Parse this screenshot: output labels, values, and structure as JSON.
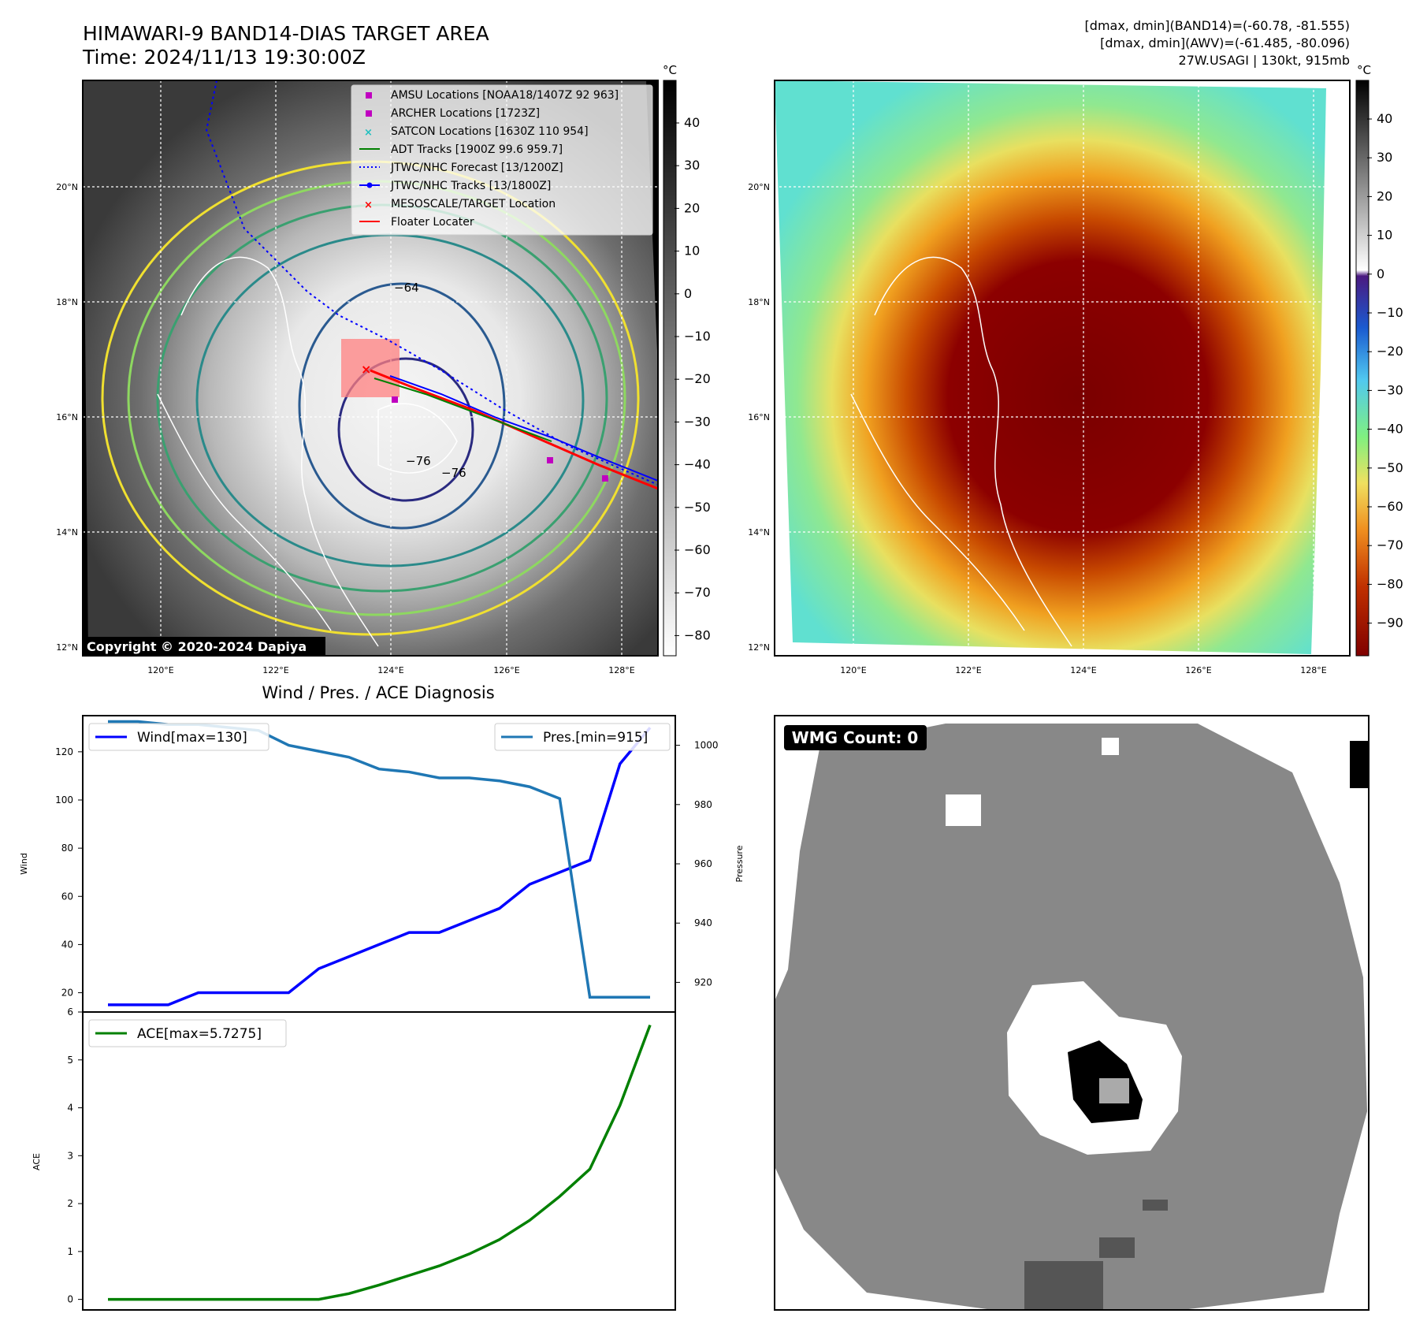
{
  "header": {
    "title_line1": "HIMAWARI-9 BAND14-DIAS TARGET AREA",
    "title_line2": "Time: 2024/11/13 19:30:00Z",
    "right_line1": "[dmax, dmin](BAND14)=(-60.78, -81.555)",
    "right_line2": "[dmax, dmin](AWV)=(-61.485, -80.096)",
    "right_line3": "27W.USAGI | 130kt, 915mb"
  },
  "ir_panel": {
    "lat_labels": [
      "20°N",
      "18°N",
      "16°N",
      "14°N",
      "12°N"
    ],
    "lon_labels": [
      "120°E",
      "122°E",
      "124°E",
      "126°E",
      "128°E"
    ],
    "colorbar_unit": "°C",
    "colorbar_ticks": [
      "40",
      "30",
      "20",
      "10",
      "0",
      "−10",
      "−20",
      "−30",
      "−40",
      "−50",
      "−60",
      "−70",
      "−80"
    ],
    "contour_labels": [
      "−64",
      "−76",
      "−76"
    ],
    "copyright": "Copyright © 2020-2024 Dapiya",
    "legend": [
      {
        "label": "AMSU Locations [NOAA18/1407Z 92 963]",
        "color": "#c000c0"
      },
      {
        "label": "ARCHER Locations [1723Z]",
        "color": "#c000c0"
      },
      {
        "label": "SATCON Locations [1630Z 110 954]",
        "color": "#20c0c0"
      },
      {
        "label": "ADT Tracks [1900Z 99.6 959.7]",
        "color": "#008000"
      },
      {
        "label": "JTWC/NHC Forecast [13/1200Z]",
        "color": "#0000ff"
      },
      {
        "label": "JTWC/NHC Tracks [13/1800Z]",
        "color": "#0000ff"
      },
      {
        "label": "MESOSCALE/TARGET Location",
        "color": "#ff0000"
      },
      {
        "label": "Floater Locater",
        "color": "#ff0000"
      }
    ]
  },
  "awv_panel": {
    "lat_labels": [
      "20°N",
      "18°N",
      "16°N",
      "14°N",
      "12°N"
    ],
    "lon_labels": [
      "120°E",
      "122°E",
      "124°E",
      "126°E",
      "128°E"
    ],
    "colorbar_unit": "°C",
    "colorbar_ticks": [
      "40",
      "30",
      "20",
      "10",
      "0",
      "−10",
      "−20",
      "−30",
      "−40",
      "−50",
      "−60",
      "−70",
      "−80",
      "−90"
    ]
  },
  "wmg_panel": {
    "badge": "WMG Count: 0"
  },
  "chart_data": [
    {
      "type": "line",
      "title": "Wind / Pres. / ACE Diagnosis",
      "ylabel": "Wind",
      "ylabel_right": "Pressure",
      "x": [
        0,
        1,
        2,
        3,
        4,
        5,
        6,
        7,
        8,
        9,
        10,
        11,
        12,
        13,
        14,
        15,
        16,
        17,
        18
      ],
      "ylim": [
        12,
        135
      ],
      "ylim_right": [
        910,
        1010
      ],
      "yticks": [
        20,
        40,
        60,
        80,
        100,
        120
      ],
      "yticks_right": [
        920,
        940,
        960,
        980,
        1000
      ],
      "series": [
        {
          "name": "Wind[max=130]",
          "axis": "left",
          "color": "#0000ff",
          "values": [
            15,
            15,
            15,
            20,
            20,
            20,
            20,
            30,
            35,
            40,
            45,
            45,
            50,
            55,
            65,
            70,
            75,
            115,
            130
          ]
        },
        {
          "name": "Pres.[min=915]",
          "axis": "right",
          "color": "#1f77b4",
          "values": [
            1008,
            1008,
            1007,
            1007,
            1006,
            1005,
            1000,
            998,
            996,
            992,
            991,
            989,
            989,
            988,
            986,
            982,
            915,
            915,
            915
          ]
        }
      ]
    },
    {
      "type": "line",
      "ylabel": "ACE",
      "x": [
        0,
        1,
        2,
        3,
        4,
        5,
        6,
        7,
        8,
        9,
        10,
        11,
        12,
        13,
        14,
        15,
        16,
        17,
        18
      ],
      "ylim": [
        -0.22,
        6
      ],
      "yticks": [
        0,
        1,
        2,
        3,
        4,
        5,
        6
      ],
      "series": [
        {
          "name": "ACE[max=5.7275]",
          "color": "#008000",
          "values": [
            0,
            0,
            0,
            0,
            0,
            0,
            0,
            0,
            0.12,
            0.3,
            0.5,
            0.7,
            0.95,
            1.25,
            1.65,
            2.15,
            2.72,
            4.05,
            5.7275
          ]
        }
      ]
    }
  ]
}
